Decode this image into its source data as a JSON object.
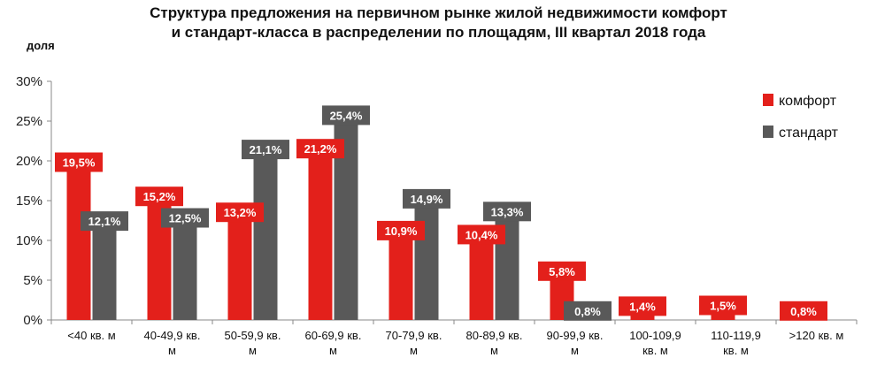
{
  "chart_data": {
    "type": "bar",
    "title_line1": "Структура  предложения на первичном рынке жилой недвижимости комфорт",
    "title_line2": "и стандарт-класса в распределении по площадям, III квартал 2018 года",
    "ylabel": "доля",
    "ylim": [
      0,
      30
    ],
    "yticks": [
      "0%",
      "5%",
      "10%",
      "15%",
      "20%",
      "25%",
      "30%"
    ],
    "categories": [
      [
        "<40 кв. м"
      ],
      [
        "40-49,9 кв.",
        "м"
      ],
      [
        "50-59,9 кв.",
        "м"
      ],
      [
        "60-69,9 кв.",
        "м"
      ],
      [
        "70-79,9 кв.",
        "м"
      ],
      [
        "80-89,9 кв.",
        "м"
      ],
      [
        "90-99,9 кв.",
        "м"
      ],
      [
        "100-109,9",
        "кв. м"
      ],
      [
        "110-119,9",
        "кв. м"
      ],
      [
        ">120 кв. м"
      ]
    ],
    "series": [
      {
        "name": "комфорт",
        "color": "#e3201b",
        "values": [
          19.5,
          15.2,
          13.2,
          21.2,
          10.9,
          10.4,
          5.8,
          1.4,
          1.5,
          0.8
        ],
        "labels": [
          "19,5%",
          "15,2%",
          "13,2%",
          "21,2%",
          "10,9%",
          "10,4%",
          "5,8%",
          "1,4%",
          "1,5%",
          "0,8%"
        ]
      },
      {
        "name": "стандарт",
        "color": "#595959",
        "values": [
          12.1,
          12.5,
          21.1,
          25.4,
          14.9,
          13.3,
          0.8,
          null,
          null,
          null
        ],
        "labels": [
          "12,1%",
          "12,5%",
          "21,1%",
          "25,4%",
          "14,9%",
          "13,3%",
          "0,8%",
          null,
          null,
          null
        ]
      }
    ],
    "legend_position": "top-right",
    "grid": false
  }
}
